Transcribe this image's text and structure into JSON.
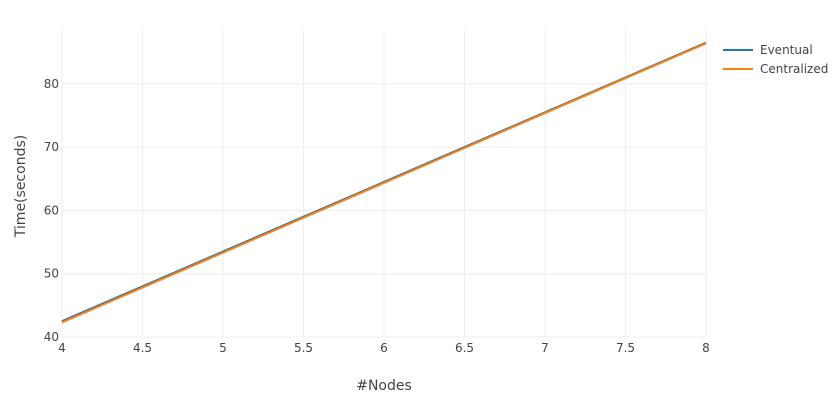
{
  "chart_data": {
    "type": "line",
    "title": "",
    "xlabel": "#Nodes",
    "ylabel": "Time(seconds)",
    "xlim": [
      4,
      8
    ],
    "ylim": [
      40,
      88.5
    ],
    "x_ticks": [
      4,
      4.5,
      5,
      5.5,
      6,
      6.5,
      7,
      7.5,
      8
    ],
    "x_tick_labels": [
      "4",
      "4.5",
      "5",
      "5.5",
      "6",
      "6.5",
      "7",
      "7.5",
      "8"
    ],
    "y_ticks": [
      40,
      50,
      60,
      70,
      80
    ],
    "y_tick_labels": [
      "40",
      "50",
      "60",
      "70",
      "80"
    ],
    "grid": true,
    "legend_position": "top-right",
    "series": [
      {
        "name": "Eventual",
        "color": "#1f77b4",
        "x": [
          4,
          8
        ],
        "y": [
          42.5,
          86.5
        ]
      },
      {
        "name": "Centralized",
        "color": "#ff7f0e",
        "x": [
          4,
          8
        ],
        "y": [
          42.3,
          86.4
        ]
      }
    ]
  }
}
